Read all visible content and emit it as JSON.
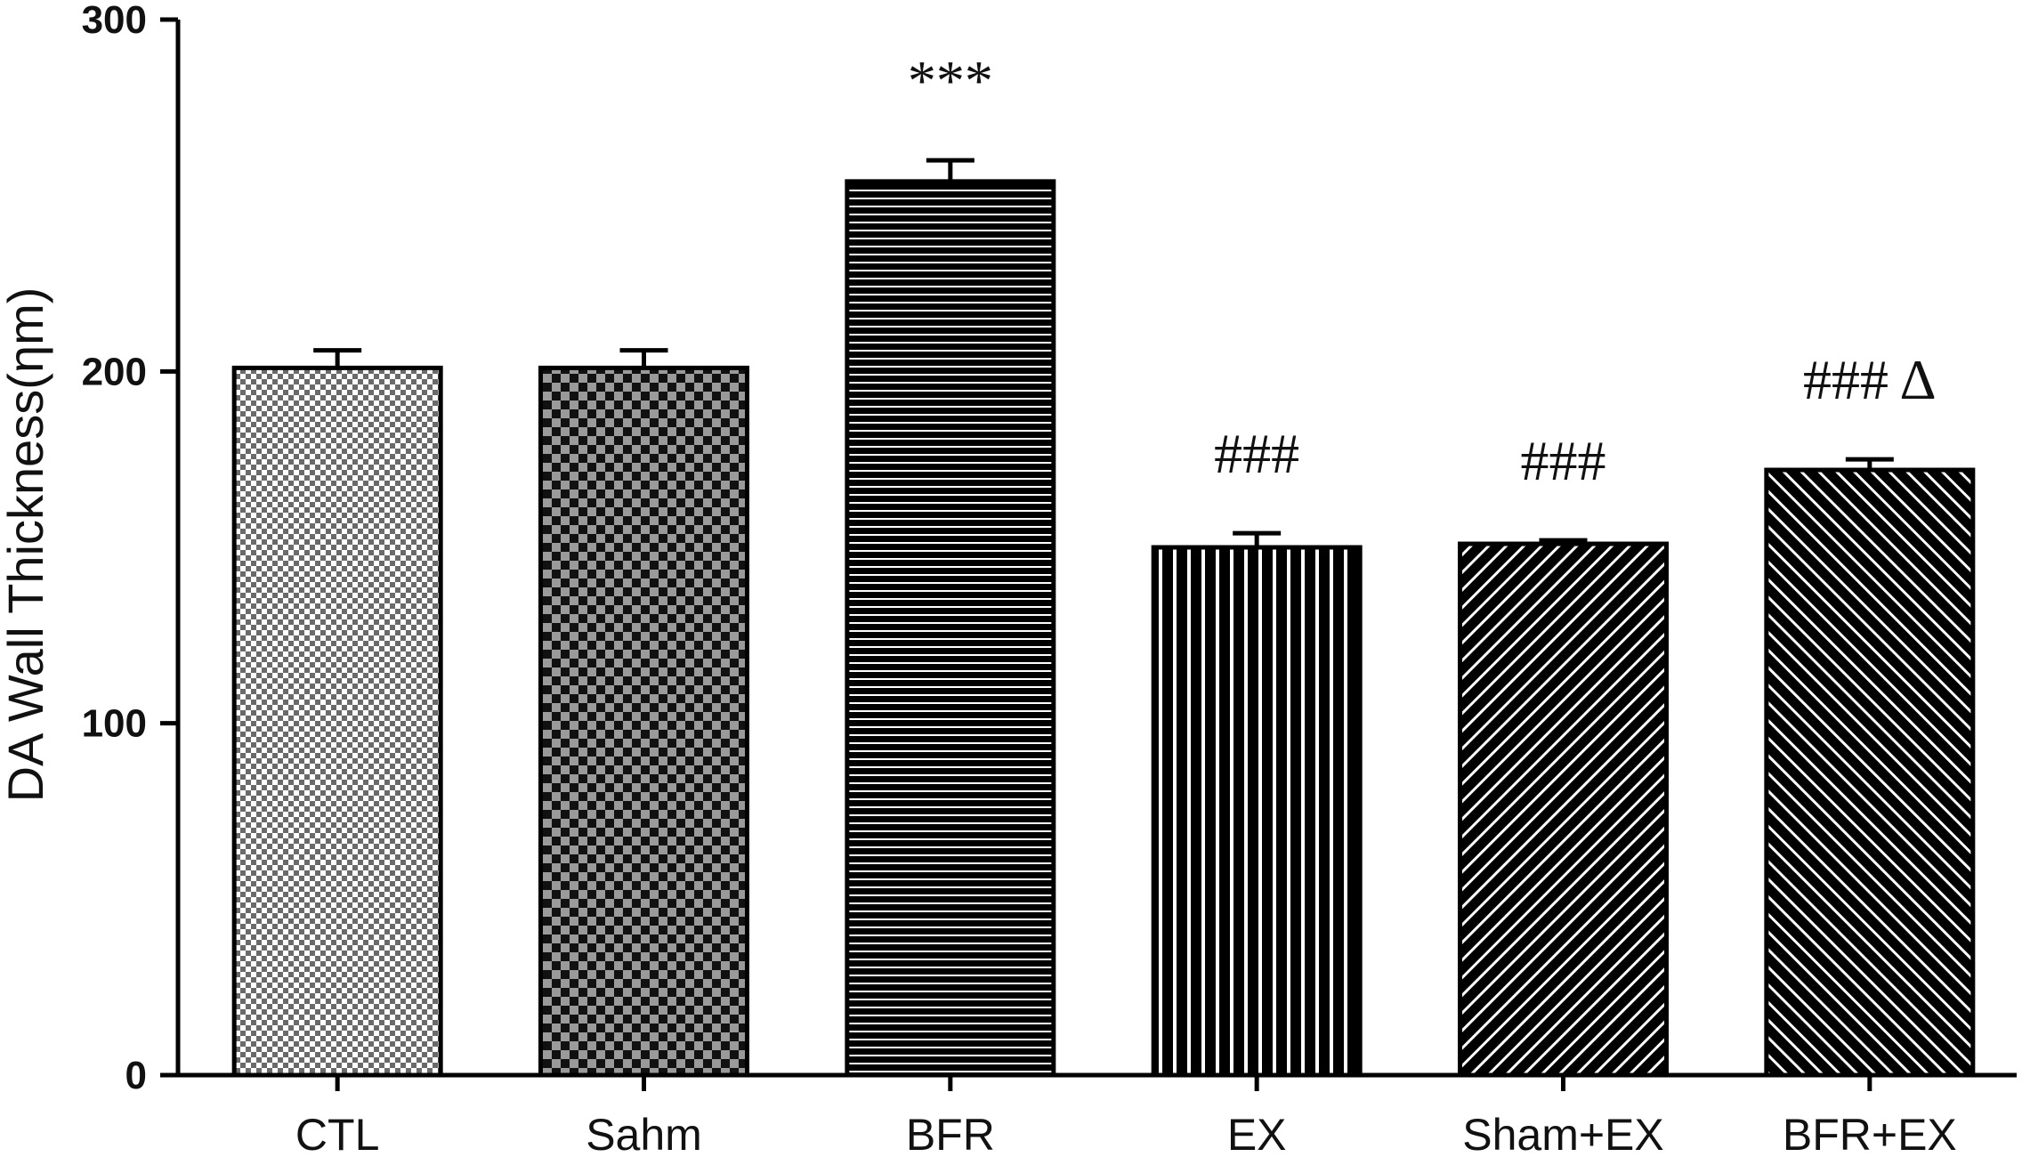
{
  "chart_data": {
    "type": "bar",
    "title": "",
    "xlabel": "",
    "ylabel": "DA Wall Thickness(ηm)",
    "ylim": [
      0,
      300
    ],
    "yticks": [
      "0",
      "100",
      "200",
      "300"
    ],
    "grid": false,
    "categories": [
      "CTL",
      "Sahm",
      "BFR",
      "EX",
      "Sham+EX",
      "BFR+EX"
    ],
    "values": [
      201,
      201,
      254,
      150,
      151,
      172
    ],
    "errors": [
      5,
      5,
      6,
      4,
      1,
      3
    ],
    "annotations": [
      "",
      "",
      "***",
      "###",
      "###",
      "### Δ"
    ],
    "patterns": [
      "fine-checker",
      "coarse-checker",
      "horizontal-lines",
      "vertical-lines",
      "diagonal-lines-up",
      "diagonal-lines-down"
    ],
    "colors": {
      "bar_edge": "#000000",
      "fill_dark": "#000000",
      "fill_light": "#ffffff",
      "checker_grey": "#8c8c8c"
    }
  }
}
